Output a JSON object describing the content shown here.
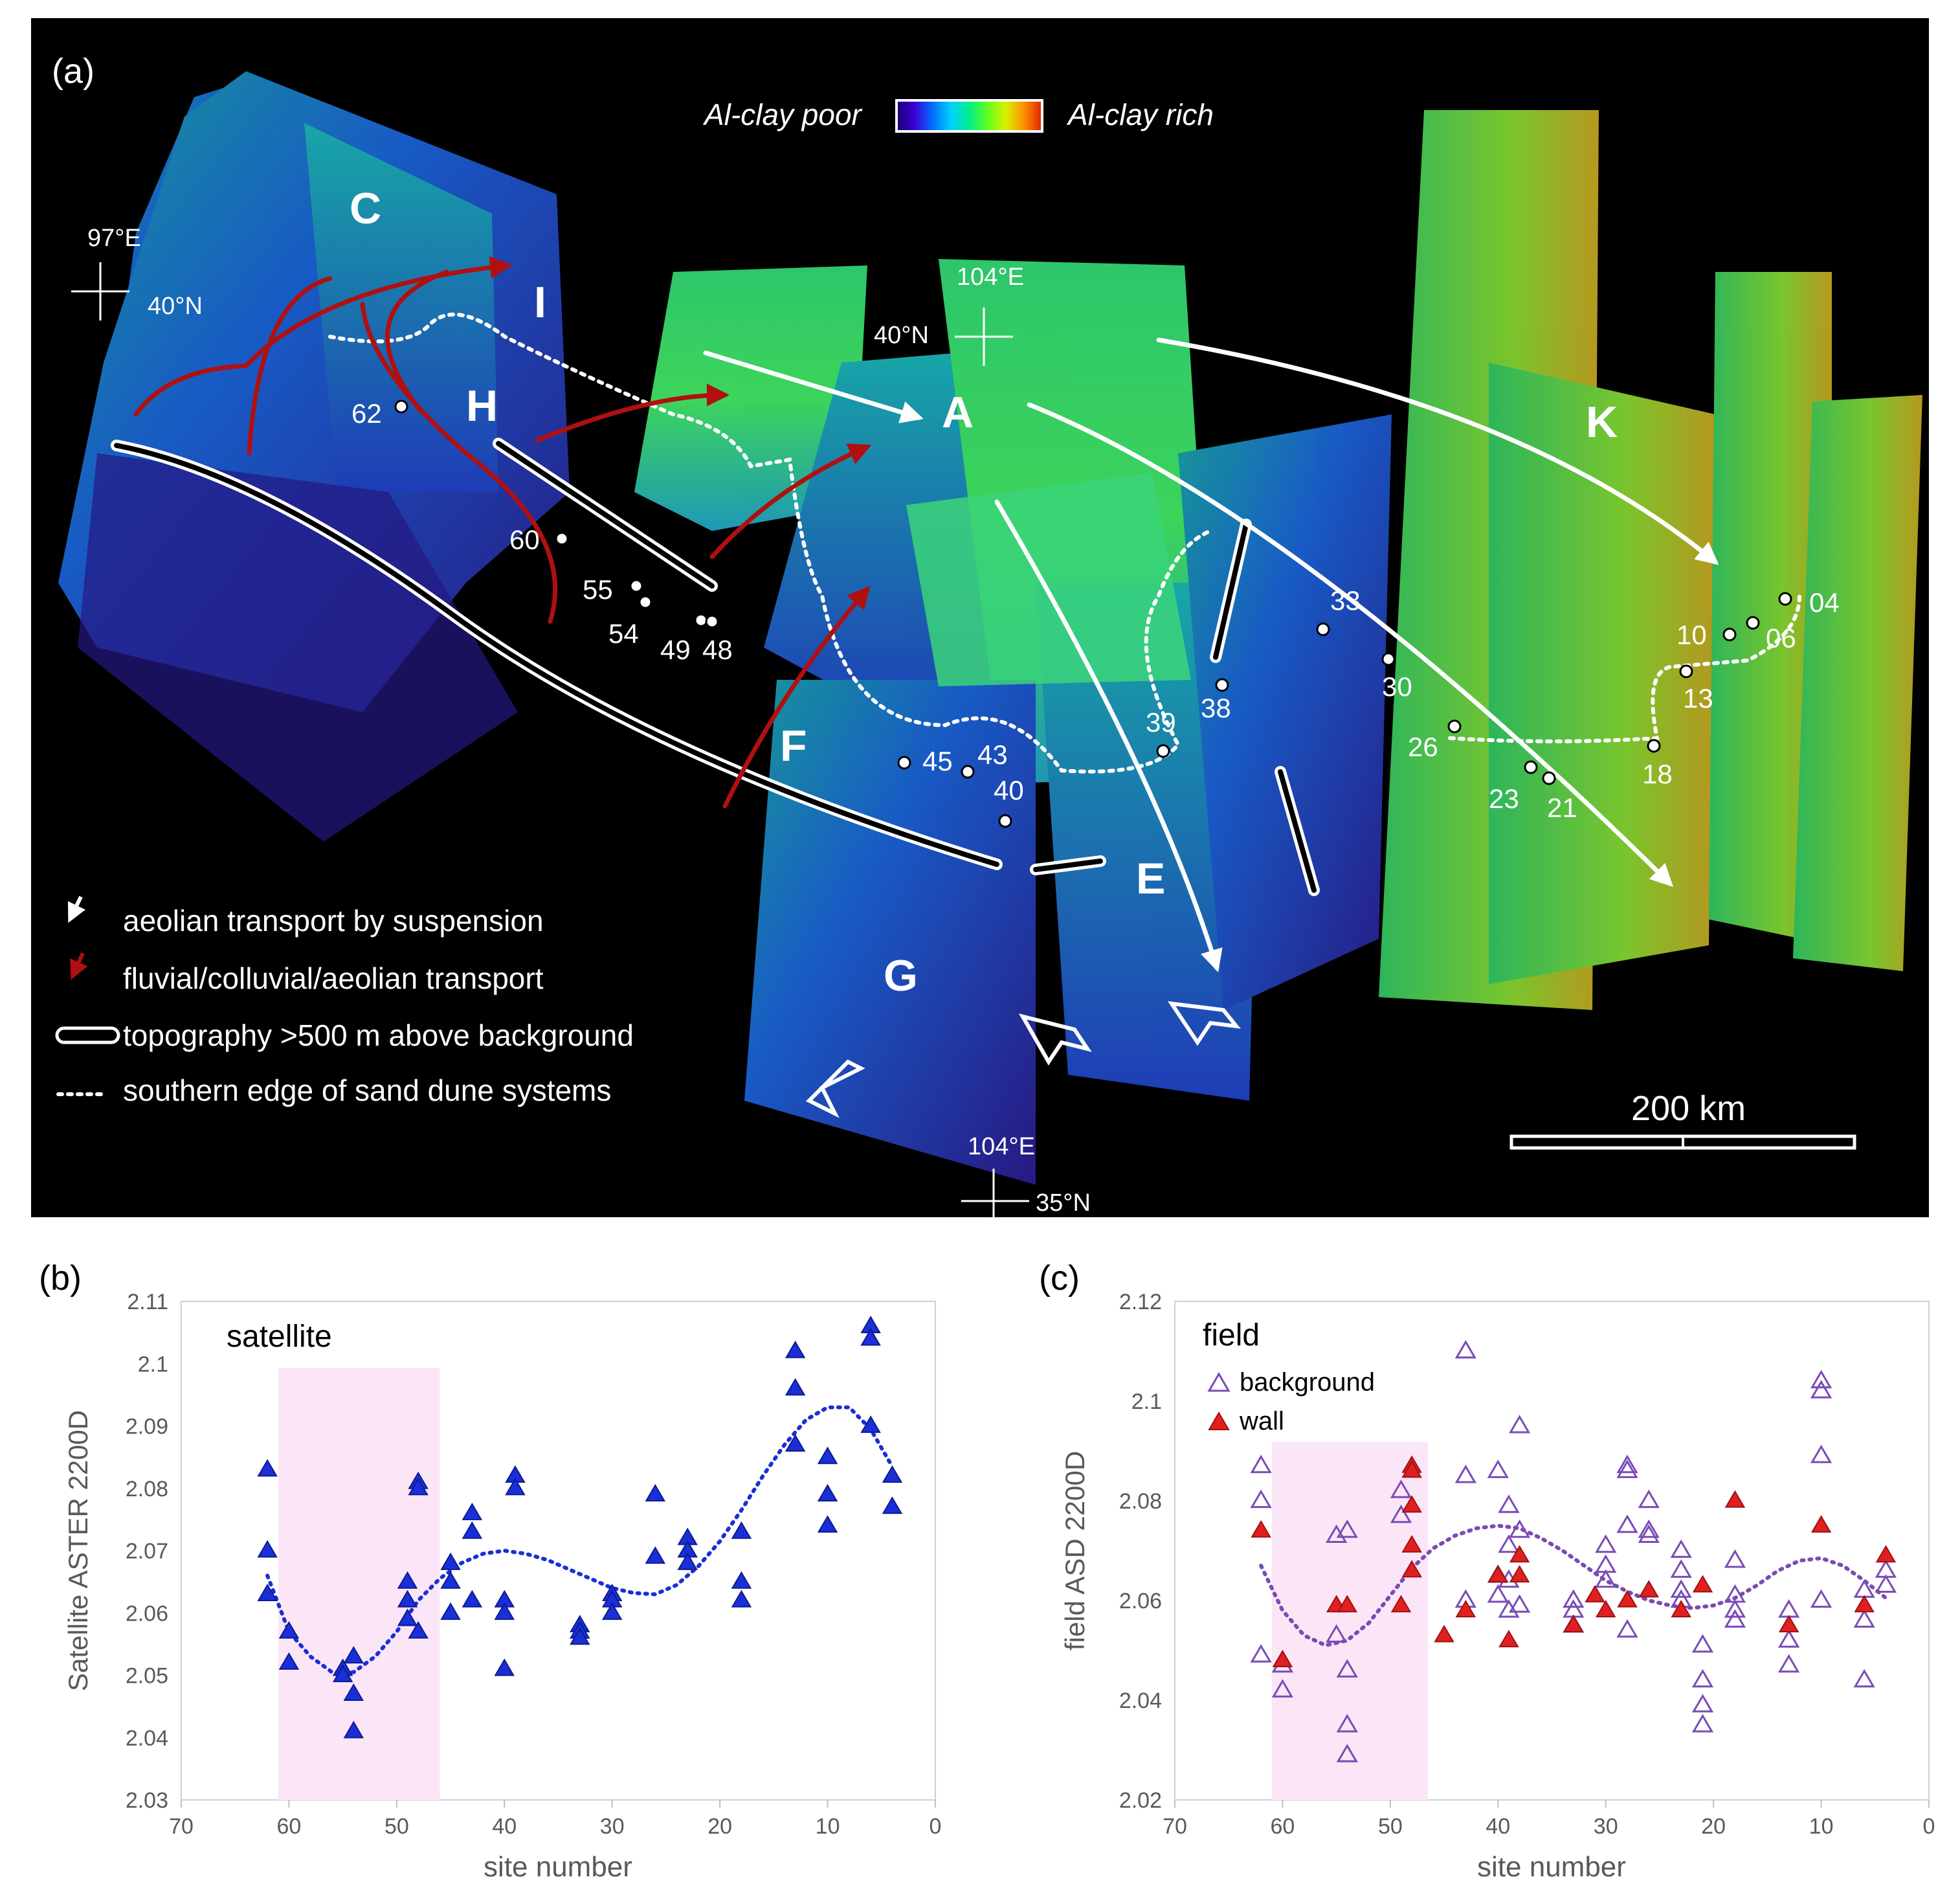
{
  "panel_a": {
    "label": "(a)",
    "colorbar": {
      "left_label": "Al-clay poor",
      "right_label": "Al-clay rich",
      "gradient": [
        "#1a0070",
        "#3a00d8",
        "#0070ff",
        "#00d0ff",
        "#00f08a",
        "#60ff20",
        "#d8f000",
        "#ff9000",
        "#e02000"
      ]
    },
    "region_letters": [
      "C",
      "I",
      "H",
      "A",
      "K",
      "F",
      "E",
      "G"
    ],
    "coords": {
      "nw_lon": "97°E",
      "nw_lat": "40°N",
      "center_lon": "104°E",
      "center_lat": "40°N",
      "south_lon": "104°E",
      "south_lat": "35°N"
    },
    "sites": [
      "62",
      "60",
      "55",
      "54",
      "49",
      "48",
      "45",
      "43",
      "40",
      "39",
      "38",
      "33",
      "30",
      "26",
      "23",
      "21",
      "18",
      "13",
      "10",
      "06",
      "04"
    ],
    "legend": [
      "aeolian transport by suspension",
      "fluvial/colluvial/aeolian transport",
      "topography >500 m above background",
      "southern edge of sand dune systems"
    ],
    "scale_bar": "200 km",
    "colors": {
      "background": "#000000",
      "white_arrow": "#ffffff",
      "red_arrow": "#b01010"
    }
  },
  "chart_data": [
    {
      "type": "scatter",
      "panel_label": "(b)",
      "title": "satellite",
      "xlabel": "site number",
      "ylabel": "Satellite ASTER 2200D",
      "xlim": [
        70,
        0
      ],
      "ylim": [
        2.03,
        2.11
      ],
      "x_ticks": [
        "70",
        "60",
        "50",
        "40",
        "30",
        "20",
        "10",
        "0"
      ],
      "y_ticks": [
        "2.03",
        "2.04",
        "2.05",
        "2.06",
        "2.07",
        "2.08",
        "2.09",
        "2.1",
        "2.11"
      ],
      "shaded_range_x": [
        61,
        46
      ],
      "series": [
        {
          "name": "satellite",
          "color": "#1a2fd8",
          "marker": "filled-triangle",
          "points": [
            [
              62,
              2.083
            ],
            [
              62,
              2.07
            ],
            [
              62,
              2.063
            ],
            [
              60,
              2.057
            ],
            [
              60,
              2.052
            ],
            [
              55,
              2.051
            ],
            [
              55,
              2.05
            ],
            [
              54,
              2.053
            ],
            [
              54,
              2.047
            ],
            [
              54,
              2.041
            ],
            [
              49,
              2.065
            ],
            [
              49,
              2.062
            ],
            [
              49,
              2.059
            ],
            [
              48,
              2.081
            ],
            [
              48,
              2.08
            ],
            [
              48,
              2.057
            ],
            [
              45,
              2.068
            ],
            [
              45,
              2.065
            ],
            [
              45,
              2.06
            ],
            [
              43,
              2.076
            ],
            [
              43,
              2.073
            ],
            [
              43,
              2.062
            ],
            [
              40,
              2.062
            ],
            [
              40,
              2.06
            ],
            [
              40,
              2.051
            ],
            [
              39,
              2.082
            ],
            [
              39,
              2.08
            ],
            [
              33,
              2.058
            ],
            [
              33,
              2.057
            ],
            [
              33,
              2.056
            ],
            [
              30,
              2.063
            ],
            [
              30,
              2.062
            ],
            [
              30,
              2.06
            ],
            [
              26,
              2.079
            ],
            [
              26,
              2.069
            ],
            [
              23,
              2.072
            ],
            [
              23,
              2.07
            ],
            [
              23,
              2.068
            ],
            [
              18,
              2.073
            ],
            [
              18,
              2.065
            ],
            [
              18,
              2.062
            ],
            [
              13,
              2.102
            ],
            [
              13,
              2.096
            ],
            [
              13,
              2.087
            ],
            [
              10,
              2.085
            ],
            [
              10,
              2.079
            ],
            [
              10,
              2.074
            ],
            [
              6,
              2.106
            ],
            [
              6,
              2.104
            ],
            [
              6,
              2.09
            ],
            [
              4,
              2.082
            ],
            [
              4,
              2.077
            ]
          ]
        }
      ],
      "trend": {
        "color": "#1a2fd8",
        "style": "dotted",
        "points": [
          [
            62,
            2.066
          ],
          [
            60,
            2.057
          ],
          [
            58,
            2.053
          ],
          [
            56,
            2.0505
          ],
          [
            54,
            2.0505
          ],
          [
            52,
            2.053
          ],
          [
            50,
            2.057
          ],
          [
            48,
            2.062
          ],
          [
            46,
            2.0655
          ],
          [
            44,
            2.068
          ],
          [
            42,
            2.0695
          ],
          [
            40,
            2.07
          ],
          [
            38,
            2.0695
          ],
          [
            36,
            2.0685
          ],
          [
            34,
            2.067
          ],
          [
            32,
            2.0655
          ],
          [
            30,
            2.064
          ],
          [
            28,
            2.0632
          ],
          [
            26,
            2.063
          ],
          [
            24,
            2.0645
          ],
          [
            22,
            2.0675
          ],
          [
            20,
            2.0715
          ],
          [
            18,
            2.0765
          ],
          [
            16,
            2.082
          ],
          [
            14,
            2.087
          ],
          [
            12,
            2.091
          ],
          [
            10,
            2.093
          ],
          [
            8,
            2.093
          ],
          [
            6,
            2.0895
          ],
          [
            4,
            2.0835
          ]
        ]
      }
    },
    {
      "type": "scatter",
      "panel_label": "(c)",
      "title": "field",
      "xlabel": "site number",
      "ylabel": "field ASD 2200D",
      "xlim": [
        70,
        0
      ],
      "ylim": [
        2.02,
        2.12
      ],
      "x_ticks": [
        "70",
        "60",
        "50",
        "40",
        "30",
        "20",
        "10",
        "0"
      ],
      "y_ticks": [
        "2.02",
        "2.04",
        "2.06",
        "2.08",
        "2.1",
        "2.12"
      ],
      "shaded_range_x": [
        61,
        46.5
      ],
      "series": [
        {
          "name": "background",
          "color": "#7a4bb5",
          "marker": "open-triangle",
          "points": [
            [
              62,
              2.087
            ],
            [
              62,
              2.08
            ],
            [
              62,
              2.049
            ],
            [
              60,
              2.047
            ],
            [
              60,
              2.042
            ],
            [
              55,
              2.073
            ],
            [
              55,
              2.053
            ],
            [
              54,
              2.074
            ],
            [
              54,
              2.046
            ],
            [
              54,
              2.035
            ],
            [
              54,
              2.029
            ],
            [
              49,
              2.082
            ],
            [
              49,
              2.077
            ],
            [
              43,
              2.11
            ],
            [
              43,
              2.085
            ],
            [
              43,
              2.06
            ],
            [
              40,
              2.086
            ],
            [
              40,
              2.065
            ],
            [
              40,
              2.061
            ],
            [
              39,
              2.079
            ],
            [
              39,
              2.071
            ],
            [
              39,
              2.064
            ],
            [
              39,
              2.058
            ],
            [
              38,
              2.095
            ],
            [
              38,
              2.074
            ],
            [
              38,
              2.059
            ],
            [
              33,
              2.06
            ],
            [
              33,
              2.058
            ],
            [
              33,
              2.055
            ],
            [
              30,
              2.071
            ],
            [
              30,
              2.067
            ],
            [
              30,
              2.064
            ],
            [
              28,
              2.087
            ],
            [
              28,
              2.086
            ],
            [
              28,
              2.075
            ],
            [
              28,
              2.054
            ],
            [
              26,
              2.08
            ],
            [
              26,
              2.074
            ],
            [
              26,
              2.073
            ],
            [
              23,
              2.07
            ],
            [
              23,
              2.066
            ],
            [
              23,
              2.062
            ],
            [
              23,
              2.06
            ],
            [
              21,
              2.051
            ],
            [
              21,
              2.044
            ],
            [
              21,
              2.039
            ],
            [
              21,
              2.035
            ],
            [
              18,
              2.068
            ],
            [
              18,
              2.061
            ],
            [
              18,
              2.058
            ],
            [
              18,
              2.056
            ],
            [
              13,
              2.058
            ],
            [
              13,
              2.052
            ],
            [
              13,
              2.047
            ],
            [
              10,
              2.104
            ],
            [
              10,
              2.102
            ],
            [
              10,
              2.089
            ],
            [
              10,
              2.06
            ],
            [
              6,
              2.062
            ],
            [
              6,
              2.056
            ],
            [
              6,
              2.044
            ],
            [
              4,
              2.066
            ],
            [
              4,
              2.063
            ]
          ]
        },
        {
          "name": "wall",
          "color": "#e02020",
          "marker": "filled-triangle",
          "points": [
            [
              62,
              2.074
            ],
            [
              60,
              2.048
            ],
            [
              55,
              2.059
            ],
            [
              54,
              2.059
            ],
            [
              49,
              2.059
            ],
            [
              48,
              2.087
            ],
            [
              48,
              2.086
            ],
            [
              48,
              2.079
            ],
            [
              48,
              2.071
            ],
            [
              48,
              2.066
            ],
            [
              45,
              2.053
            ],
            [
              43,
              2.058
            ],
            [
              40,
              2.065
            ],
            [
              39,
              2.052
            ],
            [
              38,
              2.069
            ],
            [
              38,
              2.065
            ],
            [
              33,
              2.055
            ],
            [
              31,
              2.061
            ],
            [
              30,
              2.058
            ],
            [
              28,
              2.06
            ],
            [
              26,
              2.062
            ],
            [
              23,
              2.058
            ],
            [
              21,
              2.063
            ],
            [
              18,
              2.08
            ],
            [
              13,
              2.055
            ],
            [
              10,
              2.075
            ],
            [
              6,
              2.059
            ],
            [
              4,
              2.069
            ]
          ]
        }
      ],
      "trend": {
        "color": "#7a4bb5",
        "style": "dotted",
        "points": [
          [
            62,
            2.067
          ],
          [
            60,
            2.058
          ],
          [
            58,
            2.053
          ],
          [
            56,
            2.051
          ],
          [
            54,
            2.052
          ],
          [
            52,
            2.0555
          ],
          [
            50,
            2.061
          ],
          [
            48,
            2.0665
          ],
          [
            46,
            2.0705
          ],
          [
            44,
            2.073
          ],
          [
            42,
            2.0745
          ],
          [
            40,
            2.075
          ],
          [
            38,
            2.0745
          ],
          [
            36,
            2.0725
          ],
          [
            34,
            2.07
          ],
          [
            32,
            2.067
          ],
          [
            30,
            2.064
          ],
          [
            28,
            2.0618
          ],
          [
            26,
            2.06
          ],
          [
            24,
            2.059
          ],
          [
            22,
            2.0585
          ],
          [
            20,
            2.059
          ],
          [
            18,
            2.0605
          ],
          [
            16,
            2.063
          ],
          [
            14,
            2.066
          ],
          [
            12,
            2.068
          ],
          [
            10,
            2.0685
          ],
          [
            8,
            2.067
          ],
          [
            6,
            2.064
          ],
          [
            4,
            2.0605
          ]
        ]
      }
    }
  ]
}
